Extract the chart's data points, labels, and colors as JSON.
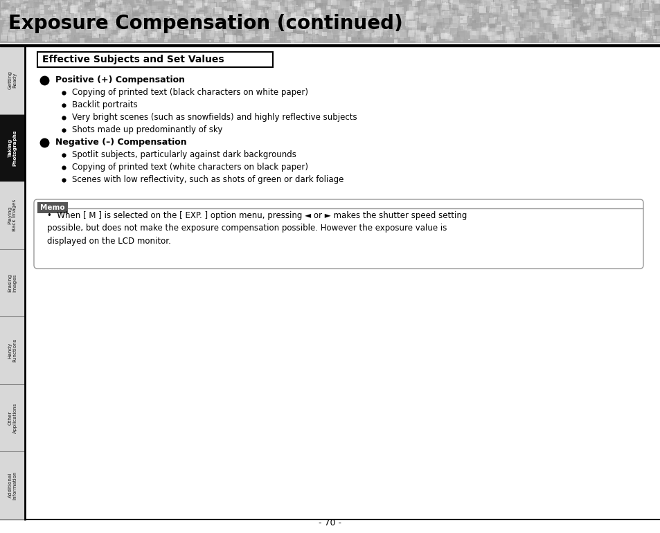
{
  "title": "Exposure Compensation (continued)",
  "section_title": "Effective Subjects and Set Values",
  "bg_color": "#ffffff",
  "sidebar_tabs": [
    {
      "label": "Getting\nReady",
      "active": false
    },
    {
      "label": "Taking\nPhotographs",
      "active": true
    },
    {
      "label": "Playing\nBack Images",
      "active": false
    },
    {
      "label": "Erasing\nImages",
      "active": false
    },
    {
      "label": "Handy\nFunctions",
      "active": false
    },
    {
      "label": "Other\nApplications",
      "active": false
    },
    {
      "label": "Additional\nInformation",
      "active": false
    }
  ],
  "bullet1_header": "Positive (+) Compensation",
  "bullet1_items": [
    "Copying of printed text (black characters on white paper)",
    "Backlit portraits",
    "Very bright scenes (such as snowfields) and highly reflective subjects",
    "Shots made up predominantly of sky"
  ],
  "bullet2_header": "Negative (–) Compensation",
  "bullet2_items": [
    "Spotlit subjects, particularly against dark backgrounds",
    "Copying of printed text (white characters on black paper)",
    "Scenes with low reflectivity, such as shots of green or dark foliage"
  ],
  "memo_label": "Memo",
  "memo_text": "When [ M ] is selected on the [ EXP. ] option menu, pressing ◄ or ► makes the shutter speed setting\npossible, but does not make the exposure compensation possible. However the exposure value is\ndisplayed on the LCD monitor.",
  "page_number": "- 70 -"
}
